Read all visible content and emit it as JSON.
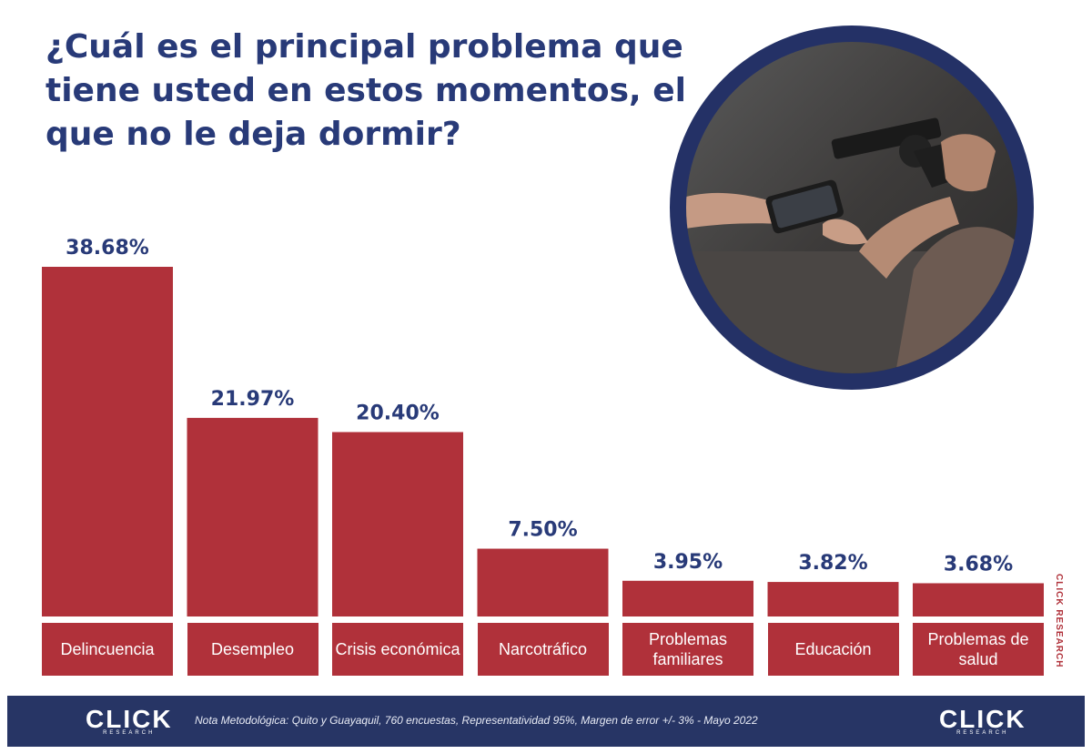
{
  "title": "¿Cuál es el principal problema que tiene usted en estos momentos, el que no le deja dormir?",
  "chart_data": {
    "type": "bar",
    "categories": [
      "Delincuencia",
      "Desempleo",
      "Crisis económica",
      "Narcotráfico",
      "Problemas familiares",
      "Educación",
      "Problemas de salud"
    ],
    "values": [
      38.68,
      21.97,
      20.4,
      7.5,
      3.95,
      3.82,
      3.68
    ],
    "value_labels": [
      "38.68%",
      "21.97%",
      "20.40%",
      "7.50%",
      "3.95%",
      "3.82%",
      "3.68%"
    ],
    "unit": "%",
    "ylim": [
      0,
      38.68
    ],
    "grid": false,
    "colors": {
      "bar": "#b0313a",
      "value_text": "#283a78"
    }
  },
  "side_credit": "CLICK RESEARCH",
  "footer": {
    "note": "Nota Metodológica: Quito y Guayaquil, 760 encuestas, Representatividad 95%, Margen de error +/- 3% - Mayo 2022",
    "logo_left": "CLICK",
    "logo_right": "CLICK",
    "logo_sub": "RESEARCH"
  },
  "photo": {
    "icon": "robbery-photo-icon"
  },
  "colors": {
    "title": "#283a78",
    "footer_bg": "#273565",
    "circle_border": "#243166"
  }
}
